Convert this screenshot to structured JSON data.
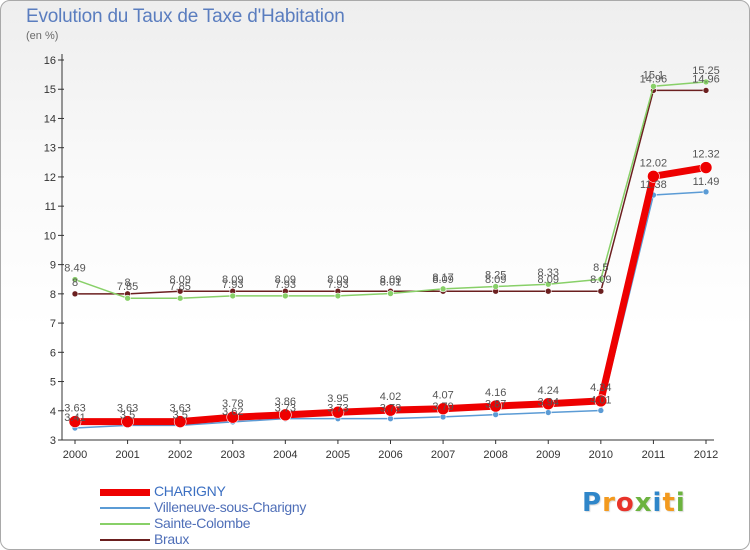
{
  "header": {
    "title": "Evolution du Taux de Taxe d'Habitation",
    "unit": "(en %)"
  },
  "logo": {
    "text": "Proxiti",
    "letter_colors": [
      "#2f86c9",
      "#f39a1e",
      "#e8332a",
      "#6cb33f",
      "#2f86c9",
      "#f39a1e",
      "#6cb33f"
    ]
  },
  "chart_data": {
    "type": "line",
    "title": "Evolution du Taux de Taxe d'Habitation",
    "ylabel": "(en %)",
    "xlabel": "",
    "x": [
      "2000",
      "2001",
      "2002",
      "2003",
      "2004",
      "2005",
      "2006",
      "2007",
      "2008",
      "2009",
      "2010",
      "2011",
      "2012"
    ],
    "ylim": [
      3,
      16
    ],
    "yticks": [
      3,
      4,
      5,
      6,
      7,
      8,
      9,
      10,
      11,
      12,
      13,
      14,
      15,
      16
    ],
    "grid": false,
    "legend_position": "bottom-left",
    "series": [
      {
        "name": "Braux",
        "color": "#6b1f1f",
        "values": [
          8,
          8,
          8.09,
          8.09,
          8.09,
          8.09,
          8.09,
          8.09,
          8.09,
          8.09,
          8.09,
          14.96,
          14.96
        ],
        "labels": [
          "8",
          "8",
          "8.09",
          "8.09",
          "8.09",
          "8.09",
          "8.09",
          "8.09",
          "8.09",
          "8.09",
          "8.09",
          "14.96",
          "14.96"
        ]
      },
      {
        "name": "Sainte-Colombe",
        "color": "#88d068",
        "values": [
          8.49,
          7.85,
          7.85,
          7.93,
          7.93,
          7.93,
          8.01,
          8.17,
          8.25,
          8.33,
          8.5,
          15.1,
          15.25
        ],
        "labels": [
          "8.49",
          "7.85",
          "7.85",
          "7.93",
          "7.93",
          "7.93",
          "8.01",
          "8.17",
          "8.25",
          "8.33",
          "8.5",
          "15.1",
          "15.25"
        ]
      },
      {
        "name": "Villeneuve-sous-Charigny",
        "color": "#5b9bd5",
        "values": [
          3.41,
          3.5,
          3.5,
          3.62,
          3.73,
          3.73,
          3.73,
          3.79,
          3.87,
          3.94,
          4.01,
          11.38,
          11.49
        ],
        "labels": [
          "3.41",
          "3.5",
          "3.5",
          "3.62",
          "3.73",
          "3.73",
          "3.73",
          "3.79",
          "3.87",
          "3.94",
          "4.01",
          "11.38",
          "11.49"
        ]
      },
      {
        "name": "CHARIGNY",
        "color": "#ee0000",
        "values": [
          3.63,
          3.63,
          3.63,
          3.78,
          3.86,
          3.95,
          4.02,
          4.07,
          4.16,
          4.24,
          4.34,
          12.02,
          12.32
        ],
        "labels": [
          "3.63",
          "3.63",
          "3.63",
          "3.78",
          "3.86",
          "3.95",
          "4.02",
          "4.07",
          "4.16",
          "4.24",
          "4.34",
          "12.02",
          "12.32"
        ]
      }
    ],
    "legend_order": [
      "CHARIGNY",
      "Villeneuve-sous-Charigny",
      "Sainte-Colombe",
      "Braux"
    ]
  }
}
